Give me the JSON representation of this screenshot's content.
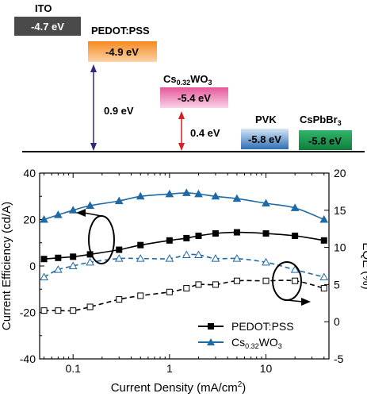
{
  "chart_data": [
    {
      "type": "energy_level_diagram",
      "levels": [
        {
          "name": "ITO",
          "value_label": "-4.7 eV",
          "energy_eV": -4.7,
          "color": "#4a4a4a",
          "text_color": "#ffffff"
        },
        {
          "name": "PEDOT:PSS",
          "value_label": "-4.9 eV",
          "energy_eV": -4.9,
          "color": "#f7a34a",
          "text_color": "#000000"
        },
        {
          "name": "Cs",
          "name_sub": "0.32",
          "name_tail": "WO",
          "name_sub2": "3",
          "value_label": "-5.4 eV",
          "energy_eV": -5.4,
          "color": "#f2a6c6",
          "text_color": "#000000"
        },
        {
          "name": "PVK",
          "value_label": "-5.8 eV",
          "energy_eV": -5.8,
          "color": "#5b93c9",
          "text_color": "#000000"
        },
        {
          "name": "CsPbBr",
          "name_sub": "3",
          "value_label": "-5.8 eV",
          "energy_eV": -5.8,
          "color": "#1f9a52",
          "text_color": "#000000"
        }
      ],
      "barriers": [
        {
          "label": "0.9 eV",
          "color": "#2e2a7a"
        },
        {
          "label": "0.4 eV",
          "color": "#d42020"
        }
      ]
    },
    {
      "type": "line",
      "xlabel": "Current Density (mA/cm",
      "xlabel_sup": "2",
      "xlabel_tail": ")",
      "ylabel_left": "Current Efficiency (cd/A)",
      "ylabel_right": "EQE (%)",
      "x_scale": "log",
      "xlim": [
        0.045,
        45
      ],
      "ylim_left": [
        -40,
        40
      ],
      "ylim_right": [
        -5,
        20
      ],
      "x_tick_labels": [
        "0.1",
        "1",
        "10"
      ],
      "y_left_ticks": [
        "-40",
        "-20",
        "0",
        "20",
        "40"
      ],
      "y_right_ticks": [
        "-5",
        "0",
        "5",
        "10",
        "15",
        "20"
      ],
      "legend": [
        {
          "name": "PEDOT:PSS",
          "color": "#000000",
          "marker": "square"
        },
        {
          "name": "Cs",
          "sub": "0.32",
          "tail": "WO",
          "sub2": "3",
          "color": "#1f6aa5",
          "marker": "triangle"
        }
      ],
      "series": [
        {
          "name": "PEDOT:PSS",
          "metric": "Current Efficiency",
          "axis": "left",
          "style": "solid",
          "marker": "square",
          "filled": true,
          "color": "#000000",
          "x": [
            0.05,
            0.07,
            0.1,
            0.15,
            0.3,
            0.5,
            1,
            1.5,
            2,
            3,
            5,
            10,
            20,
            40
          ],
          "y": [
            3,
            3.5,
            4,
            5,
            7,
            9,
            11,
            12,
            13,
            14,
            14.5,
            14,
            13,
            11
          ]
        },
        {
          "name": "Cs0.32WO3",
          "metric": "Current Efficiency",
          "axis": "left",
          "style": "solid",
          "marker": "triangle",
          "filled": true,
          "color": "#1f6aa5",
          "x": [
            0.05,
            0.07,
            0.1,
            0.15,
            0.3,
            0.5,
            1,
            1.5,
            2,
            3,
            5,
            10,
            20,
            40
          ],
          "y": [
            20,
            22,
            24,
            26,
            28,
            30,
            31,
            31.5,
            31,
            30,
            29,
            27,
            25,
            20
          ]
        },
        {
          "name": "PEDOT:PSS",
          "metric": "EQE",
          "axis": "right",
          "style": "dashed",
          "marker": "square",
          "filled": false,
          "color": "#000000",
          "x": [
            0.05,
            0.07,
            0.1,
            0.15,
            0.3,
            0.5,
            1,
            1.5,
            2,
            3,
            5,
            10,
            20,
            40
          ],
          "y": [
            1.5,
            1.5,
            1.5,
            2,
            3,
            3.5,
            4,
            4.5,
            5,
            5,
            5.5,
            5.5,
            5.5,
            4.5
          ]
        },
        {
          "name": "Cs0.32WO3",
          "metric": "EQE",
          "axis": "right",
          "style": "dashed",
          "marker": "triangle",
          "filled": false,
          "color": "#1f6aa5",
          "x": [
            0.05,
            0.07,
            0.1,
            0.15,
            0.3,
            0.5,
            1,
            1.5,
            2,
            3,
            5,
            10,
            20,
            40
          ],
          "y": [
            6,
            7,
            7.5,
            8,
            8.5,
            8.5,
            8.5,
            9,
            9,
            8.5,
            8.5,
            8,
            7,
            6
          ]
        }
      ]
    }
  ]
}
